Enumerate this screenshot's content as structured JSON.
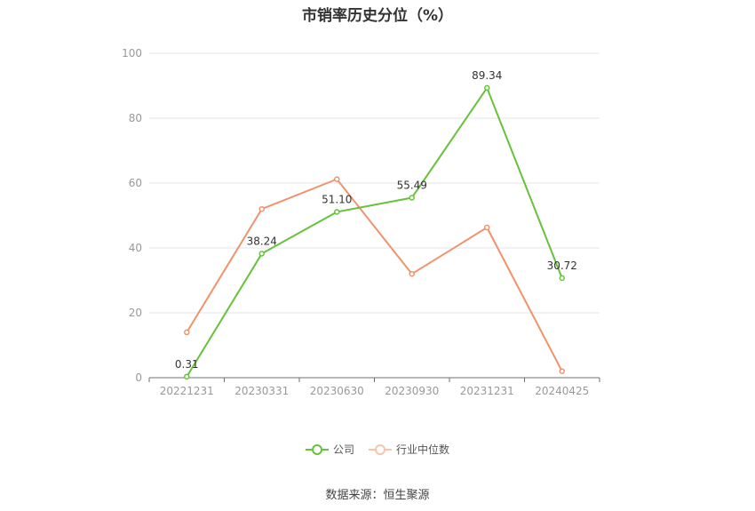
{
  "chart_data": {
    "type": "line",
    "title": "市销率历史分位（%）",
    "categories": [
      "20221231",
      "20230331",
      "20230630",
      "20230930",
      "20231231",
      "20240425"
    ],
    "ylim": [
      0,
      100
    ],
    "yticks": [
      0,
      20,
      40,
      60,
      80,
      100
    ],
    "grid": true,
    "legend_position": "bottom",
    "series": [
      {
        "name": "公司",
        "color": "#67c23a",
        "values": [
          0.31,
          38.24,
          51.1,
          55.49,
          89.34,
          30.72
        ],
        "labels": [
          "0.31",
          "38.24",
          "51.10",
          "55.49",
          "89.34",
          "30.72"
        ]
      },
      {
        "name": "行业中位数",
        "color": "#f0936a",
        "values": [
          14.0,
          52.0,
          61.2,
          32.0,
          46.3,
          2.0
        ]
      }
    ]
  },
  "source": "数据来源：恒生聚源"
}
